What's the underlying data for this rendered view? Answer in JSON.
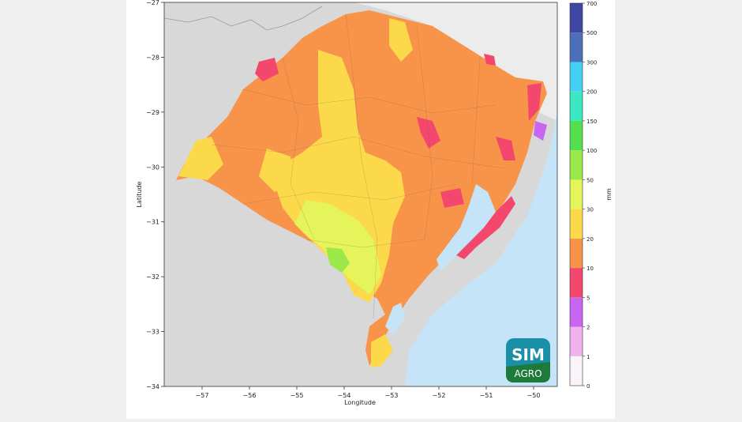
{
  "axes": {
    "xlabel": "Longitude",
    "ylabel": "Latitude",
    "xticks": [
      "−57",
      "−56",
      "−55",
      "−54",
      "−53",
      "−52",
      "−51",
      "−50"
    ],
    "yticks": [
      "−27",
      "−28",
      "−29",
      "−30",
      "−31",
      "−32",
      "−33",
      "−34"
    ]
  },
  "colorbar": {
    "unit": "mm",
    "levels": [
      "0",
      "1",
      "2",
      "5",
      "10",
      "20",
      "30",
      "50",
      "100",
      "150",
      "200",
      "300",
      "500",
      "700"
    ],
    "colors": [
      "#fbf3fa",
      "#f1b2ef",
      "#c965f3",
      "#f4476e",
      "#f8944a",
      "#fbd94b",
      "#e4f45a",
      "#9be84a",
      "#54df4d",
      "#3be8c2",
      "#46cff5",
      "#4b6fb8",
      "#3f46a3"
    ]
  },
  "logo": {
    "line1": "SIM",
    "line2": "AGRO"
  },
  "chart_data": {
    "type": "heatmap",
    "title": "",
    "xlabel": "Longitude",
    "ylabel": "Latitude",
    "xlim": [
      -57.8,
      -49.5
    ],
    "ylim": [
      -34,
      -27
    ],
    "colorbar_label": "mm",
    "colorbar_levels": [
      0,
      1,
      2,
      5,
      10,
      20,
      30,
      50,
      100,
      150,
      200,
      300,
      500,
      700
    ],
    "dominant_class": "10–20 mm",
    "notes_visible": [
      "20–30 mm band over central region",
      "30–50 mm near -54.0, -31.7",
      "5–10 mm patches along the eastern coast"
    ]
  }
}
